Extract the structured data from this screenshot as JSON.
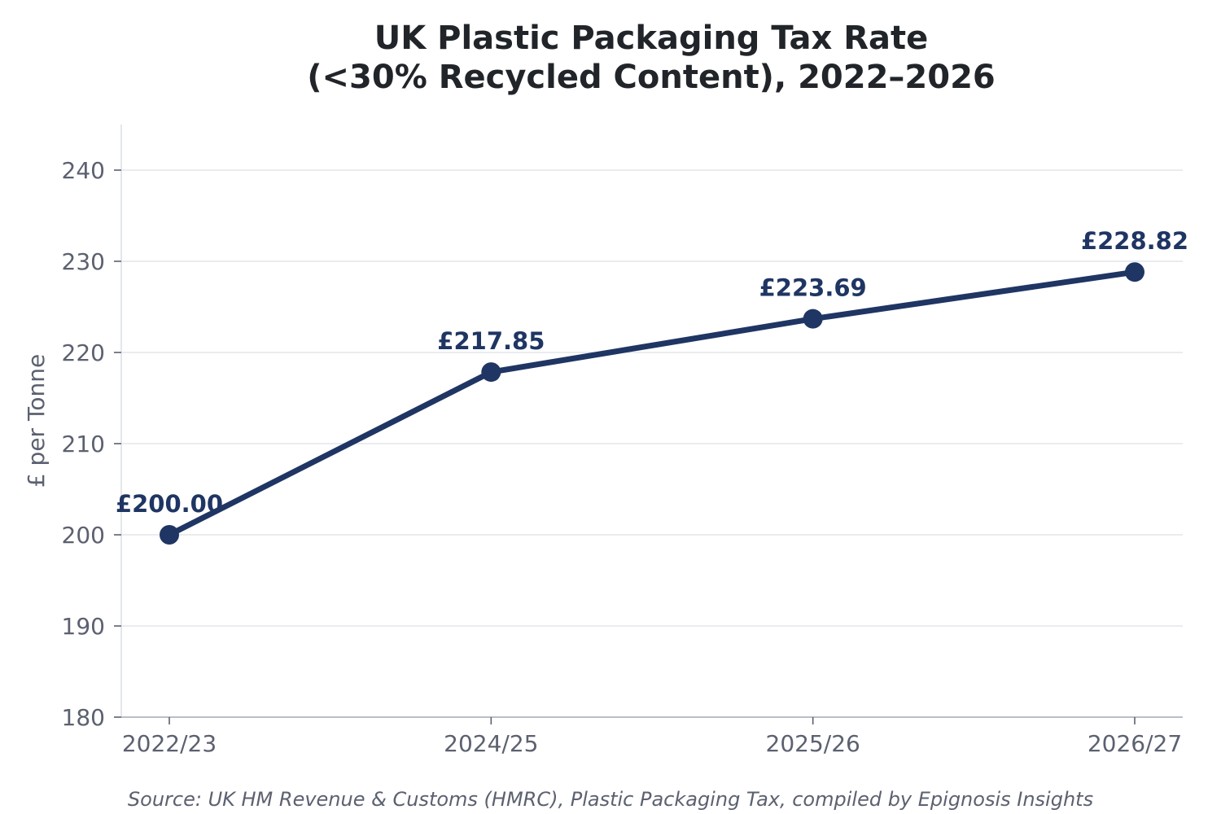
{
  "chart_data": {
    "type": "line",
    "title_lines": [
      "UK Plastic Packaging Tax Rate",
      "(<30% Recycled Content), 2022–2026"
    ],
    "xlabel": "",
    "ylabel": "£ per Tonne",
    "categories": [
      "2022/23",
      "2024/25",
      "2025/26",
      "2026/27"
    ],
    "series": [
      {
        "values": [
          200.0,
          217.85,
          223.69,
          228.82
        ],
        "data_labels": [
          "£200.00",
          "£217.85",
          "£223.69",
          "£228.82"
        ],
        "color": "#1f3563"
      }
    ],
    "ylim": [
      180,
      245
    ],
    "yticks": [
      180,
      190,
      200,
      210,
      220,
      230,
      240
    ],
    "grid": true,
    "legend": "none",
    "source": "Source: UK HM Revenue & Customs (HMRC), Plastic Packaging Tax, compiled by Epignosis Insights"
  },
  "colors": {
    "line": "#1f3563",
    "grid": "#e3e6ea",
    "axis": "#b8bfc9",
    "tick_text": "#5c6170",
    "title_text": "#212529"
  }
}
